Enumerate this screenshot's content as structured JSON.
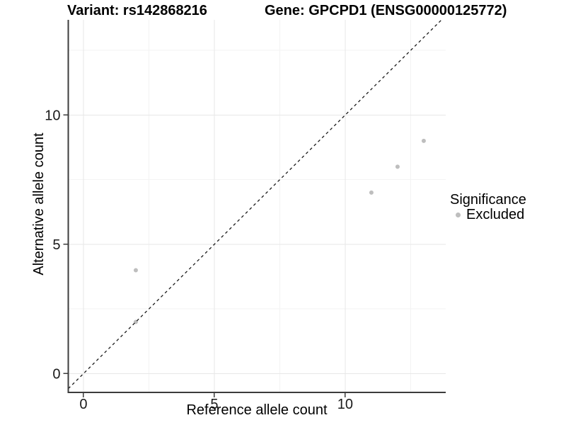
{
  "chart_data": {
    "type": "scatter",
    "title_left": "Variant: rs142868216",
    "title_right": "Gene: GPCPD1 (ENSG00000125772)",
    "xlabel": "Reference allele count",
    "ylabel": "Alternative allele count",
    "xlim": [
      -0.58,
      13.84
    ],
    "ylim": [
      -0.726,
      13.68
    ],
    "x_major_ticks": [
      0,
      5,
      10
    ],
    "y_major_ticks": [
      0,
      5,
      10
    ],
    "x_minor_gridlines": [
      2.5,
      7.5,
      12.5
    ],
    "y_minor_gridlines": [
      2.5,
      7.5,
      12.5
    ],
    "identity_line": {
      "style": "dashed",
      "slope": 1,
      "intercept": 0
    },
    "series": [
      {
        "name": "Excluded",
        "color": "#bebebe",
        "points": [
          {
            "x": 2,
            "y": 2
          },
          {
            "x": 2,
            "y": 4
          },
          {
            "x": 11,
            "y": 7
          },
          {
            "x": 12,
            "y": 8
          },
          {
            "x": 13,
            "y": 9
          }
        ]
      }
    ],
    "legend": {
      "title": "Significance",
      "position": "right",
      "items": [
        {
          "label": "Excluded",
          "color": "#bebebe"
        }
      ]
    },
    "grid": true
  },
  "colors": {
    "background": "#ffffff",
    "grid_major": "#e7e7e7",
    "grid_minor": "#f3f3f3",
    "axis_line": "#3c3c3c",
    "tick_text": "#1a1a1a",
    "identity_line": "#1a1a1a",
    "point": "#bebebe"
  }
}
